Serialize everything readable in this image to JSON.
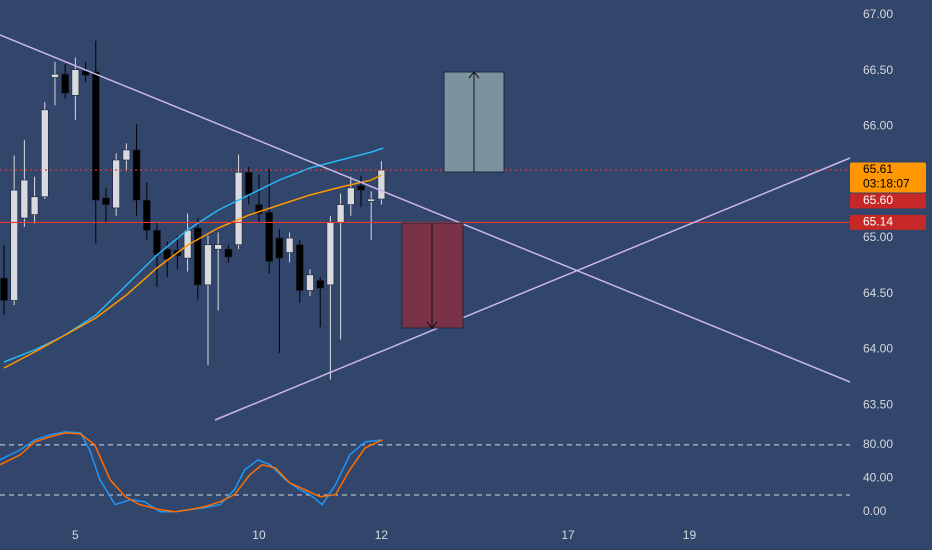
{
  "chart_data": [
    {
      "type": "candlestick",
      "candles": {
        "open": [
          64.64,
          64.44,
          65.18,
          65.21,
          65.37,
          66.44,
          66.47,
          66.28,
          66.5,
          66.49,
          65.36,
          65.27,
          65.7,
          65.79,
          65.34,
          65.07,
          64.9,
          64.89,
          64.82,
          65.09,
          64.58,
          64.9,
          64.9,
          64.94,
          65.59,
          65.3,
          65.23,
          65.0,
          64.87,
          64.94,
          64.53,
          64.62,
          64.58,
          65.14,
          65.3,
          65.47,
          65.33,
          65.35
        ],
        "high": [
          64.94,
          65.74,
          65.88,
          65.55,
          66.22,
          66.58,
          66.56,
          66.62,
          66.58,
          66.77,
          65.45,
          65.76,
          65.85,
          66.02,
          65.5,
          65.14,
          64.97,
          65.02,
          65.22,
          65.18,
          65.02,
          65.05,
          64.94,
          65.75,
          65.64,
          65.57,
          65.62,
          65.08,
          65.05,
          64.98,
          64.72,
          64.65,
          65.2,
          65.4,
          65.55,
          65.56,
          65.42,
          65.69
        ],
        "low": [
          64.31,
          64.4,
          65.1,
          65.13,
          65.35,
          66.19,
          66.25,
          66.06,
          66.4,
          64.95,
          65.13,
          65.2,
          65.6,
          65.2,
          64.98,
          64.56,
          64.65,
          64.72,
          64.7,
          64.45,
          63.86,
          64.35,
          64.78,
          64.9,
          65.3,
          65.14,
          64.68,
          63.97,
          64.78,
          64.42,
          64.48,
          64.2,
          63.73,
          64.09,
          65.2,
          65.28,
          64.98,
          65.3
        ],
        "close": [
          64.44,
          65.43,
          65.52,
          65.37,
          66.15,
          66.47,
          66.3,
          66.51,
          66.46,
          65.34,
          65.3,
          65.7,
          65.79,
          65.34,
          65.07,
          64.85,
          64.81,
          64.84,
          65.07,
          64.58,
          64.94,
          64.94,
          64.83,
          65.59,
          65.39,
          65.22,
          64.79,
          64.82,
          65.0,
          64.53,
          64.67,
          64.55,
          65.14,
          65.3,
          65.45,
          65.43,
          65.35,
          65.61
        ]
      },
      "up_color": "#d8dadf",
      "down_color": "#000000",
      "series": [
        {
          "color": "#29b6f6",
          "x": [
            0,
            3,
            6,
            9,
            12,
            15,
            18,
            21,
            24,
            27,
            30,
            33,
            36,
            37.2
          ],
          "values": [
            63.888,
            63.996,
            64.13,
            64.309,
            64.578,
            64.848,
            65.072,
            65.251,
            65.386,
            65.52,
            65.628,
            65.7,
            65.771,
            65.807
          ]
        },
        {
          "color": "#ff9800",
          "x": [
            0,
            3,
            6,
            9,
            12,
            15,
            18,
            21,
            24,
            27,
            30,
            33,
            36,
            37
          ],
          "values": [
            63.834,
            63.978,
            64.13,
            64.283,
            64.489,
            64.731,
            64.937,
            65.09,
            65.206,
            65.296,
            65.386,
            65.457,
            65.52,
            65.565
          ]
        }
      ],
      "price_labels": [
        {
          "value": 65.61,
          "label": "65.61",
          "sublabel": "03:18:07",
          "color": "#ff9800",
          "text_color": "#000000"
        },
        {
          "value": 65.6,
          "label": "65.60",
          "color": "#c62828",
          "text_color": "#ffffff"
        },
        {
          "value": 65.14,
          "label": "65.14",
          "color": "#c62828",
          "text_color": "#ffffff"
        }
      ],
      "price_lines": [
        {
          "value": 65.61,
          "color": "#e53935",
          "dash": true
        },
        {
          "value": 65.14,
          "color": "#e53935",
          "dash": false
        }
      ],
      "xlim": [
        -0.39,
        82.94
      ],
      "ylim": [
        63.368,
        67.135
      ],
      "yticks": [
        {
          "value": 67,
          "label": "67.00"
        },
        {
          "value": 66.5,
          "label": "66.50"
        },
        {
          "value": 66,
          "label": "66.00"
        },
        {
          "value": 65,
          "label": "65.00"
        },
        {
          "value": 64.5,
          "label": "64.50"
        },
        {
          "value": 64,
          "label": "64.00"
        },
        {
          "value": 63.5,
          "label": "63.50"
        }
      ],
      "grid": false
    },
    {
      "type": "line",
      "series": [
        {
          "color": "#2196f3",
          "x": [
            -0.4,
            1.6,
            3.0,
            4.5,
            6.0,
            7.5,
            8.4,
            9.4,
            10.9,
            12.4,
            13.8,
            15.3,
            16.8,
            18.2,
            19.7,
            21.2,
            22.6,
            23.6,
            24.9,
            26.1,
            27.6,
            29.0,
            30.0,
            31.2,
            32.5,
            33.9,
            35.4,
            37.1
          ],
          "values": [
            62.1,
            74.0,
            86.0,
            91.9,
            95.5,
            94.3,
            74.0,
            38.2,
            8.4,
            14.3,
            11.9,
            0,
            0,
            2.4,
            4.8,
            8.4,
            26.3,
            50.1,
            62.1,
            56.1,
            38.2,
            26.3,
            20.3,
            8.4,
            32.2,
            68.1,
            83.6,
            86.0
          ]
        },
        {
          "color": "#ff6d00",
          "x": [
            -0.4,
            1.6,
            3.0,
            4.5,
            6.0,
            7.5,
            8.9,
            10.4,
            11.9,
            13.3,
            15.3,
            16.8,
            18.2,
            19.7,
            21.2,
            22.6,
            24.1,
            25.3,
            26.6,
            28.0,
            29.5,
            31.0,
            32.5,
            33.9,
            35.4,
            37.1
          ],
          "values": [
            56.1,
            68.1,
            83.6,
            89.6,
            94.3,
            93.1,
            80.0,
            38.2,
            17.9,
            8.4,
            2.4,
            0,
            2.4,
            6.0,
            11.9,
            20.3,
            44.2,
            56.1,
            52.5,
            34.6,
            26.3,
            17.9,
            20.3,
            50.1,
            76.4,
            86.0
          ]
        }
      ],
      "bands": [
        20,
        80
      ],
      "xlim": [
        -0.39,
        82.94
      ],
      "ylim": [
        -10,
        105
      ],
      "yticks": [
        {
          "value": 80,
          "label": "80.00"
        },
        {
          "value": 40,
          "label": "40.00"
        },
        {
          "value": 0,
          "label": "0.00"
        }
      ],
      "xticks": [
        {
          "value": 7,
          "label": "5"
        },
        {
          "value": 25,
          "label": "10"
        },
        {
          "value": 37,
          "label": "12"
        },
        {
          "value": 55.3,
          "label": "17"
        },
        {
          "value": 67.2,
          "label": "19"
        }
      ]
    }
  ]
}
